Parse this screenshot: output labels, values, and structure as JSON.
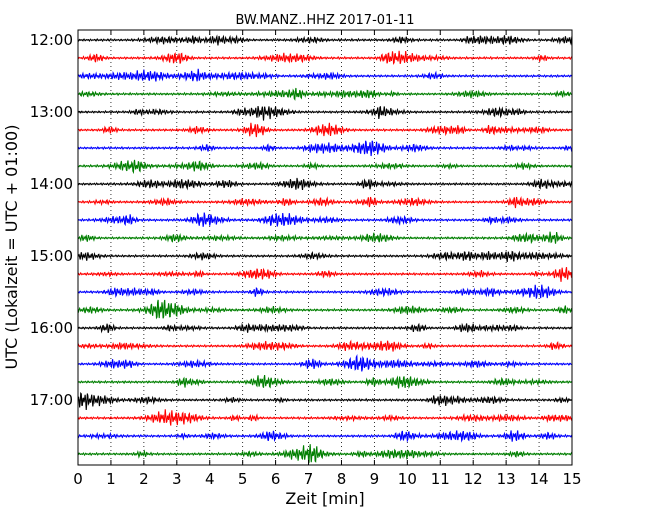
{
  "chart_data": {
    "type": "line",
    "title": "BW.MANZ..HHZ 2017-01-11",
    "xlabel": "Zeit  [min]",
    "ylabel": "UTC (Lokalzeit = UTC + 01:00)",
    "xlim": [
      0,
      15
    ],
    "x_ticks": [
      0,
      1,
      2,
      3,
      4,
      5,
      6,
      7,
      8,
      9,
      10,
      11,
      12,
      13,
      14,
      15
    ],
    "x_tick_labels": [
      "0",
      "1",
      "2",
      "3",
      "4",
      "5",
      "6",
      "7",
      "8",
      "9",
      "10",
      "11",
      "12",
      "13",
      "14",
      "15"
    ],
    "y_tick_labels": [
      "12:00",
      "13:00",
      "14:00",
      "15:00",
      "16:00",
      "17:00"
    ],
    "trace_interval_min": 15,
    "grid": "vertical dotted",
    "colors": [
      "#000000",
      "#ff0000",
      "#0000ff",
      "#007f00"
    ],
    "traces": [
      {
        "start": "12:00",
        "color": "#000000"
      },
      {
        "start": "12:15",
        "color": "#ff0000"
      },
      {
        "start": "12:30",
        "color": "#0000ff"
      },
      {
        "start": "12:45",
        "color": "#007f00"
      },
      {
        "start": "13:00",
        "color": "#000000"
      },
      {
        "start": "13:15",
        "color": "#ff0000"
      },
      {
        "start": "13:30",
        "color": "#0000ff"
      },
      {
        "start": "13:45",
        "color": "#007f00"
      },
      {
        "start": "14:00",
        "color": "#000000"
      },
      {
        "start": "14:15",
        "color": "#ff0000"
      },
      {
        "start": "14:30",
        "color": "#0000ff"
      },
      {
        "start": "14:45",
        "color": "#007f00"
      },
      {
        "start": "15:00",
        "color": "#000000"
      },
      {
        "start": "15:15",
        "color": "#ff0000"
      },
      {
        "start": "15:30",
        "color": "#0000ff"
      },
      {
        "start": "15:45",
        "color": "#007f00"
      },
      {
        "start": "16:00",
        "color": "#000000"
      },
      {
        "start": "16:15",
        "color": "#ff0000"
      },
      {
        "start": "16:30",
        "color": "#0000ff"
      },
      {
        "start": "16:45",
        "color": "#007f00"
      },
      {
        "start": "17:00",
        "color": "#000000"
      },
      {
        "start": "17:15",
        "color": "#ff0000"
      },
      {
        "start": "17:30",
        "color": "#0000ff"
      },
      {
        "start": "17:45",
        "color": "#007f00"
      }
    ]
  }
}
